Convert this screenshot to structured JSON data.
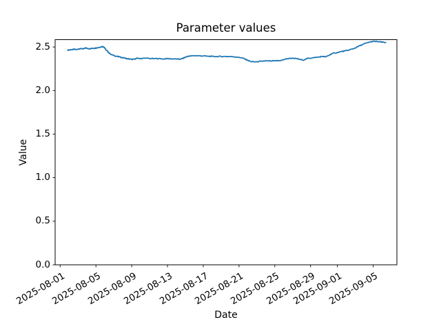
{
  "figure": {
    "title": "Parameter values",
    "xlabel": "Date",
    "ylabel": "Value"
  },
  "chart_data": {
    "type": "line",
    "title": "Parameter values",
    "xlabel": "Date",
    "ylabel": "Value",
    "grid": false,
    "legend_position": "none",
    "background_color": "#ffffff",
    "axes_color": "#000000",
    "line_color": "#1f77b4",
    "x_epoch_date": "2025-08-01",
    "xlim_days": [
      -0.562,
      37.65
    ],
    "ylim": [
      0,
      2.584
    ],
    "y_ticks": [
      0.0,
      0.5,
      1.0,
      1.5,
      2.0,
      2.5
    ],
    "x_ticks": [
      {
        "label": "2025-08-01",
        "day": 0
      },
      {
        "label": "2025-08-05",
        "day": 4
      },
      {
        "label": "2025-08-09",
        "day": 8
      },
      {
        "label": "2025-08-13",
        "day": 12
      },
      {
        "label": "2025-08-17",
        "day": 16
      },
      {
        "label": "2025-08-21",
        "day": 20
      },
      {
        "label": "2025-08-25",
        "day": 24
      },
      {
        "label": "2025-08-29",
        "day": 28
      },
      {
        "label": "2025-09-01",
        "day": 31
      },
      {
        "label": "2025-09-05",
        "day": 35
      }
    ],
    "series": [
      {
        "name": "Parameter values",
        "points_day_value": [
          [
            0.85,
            2.462
          ],
          [
            1.1,
            2.468
          ],
          [
            1.35,
            2.47
          ],
          [
            1.6,
            2.473
          ],
          [
            1.85,
            2.47
          ],
          [
            2.1,
            2.478
          ],
          [
            2.35,
            2.483
          ],
          [
            2.6,
            2.478
          ],
          [
            2.85,
            2.488
          ],
          [
            3.1,
            2.482
          ],
          [
            3.35,
            2.48
          ],
          [
            3.6,
            2.485
          ],
          [
            3.85,
            2.486
          ],
          [
            4.1,
            2.49
          ],
          [
            4.35,
            2.495
          ],
          [
            4.6,
            2.503
          ],
          [
            4.8,
            2.505
          ],
          [
            4.95,
            2.495
          ],
          [
            5.1,
            2.47
          ],
          [
            5.3,
            2.45
          ],
          [
            5.5,
            2.428
          ],
          [
            5.75,
            2.412
          ],
          [
            6.0,
            2.402
          ],
          [
            6.3,
            2.393
          ],
          [
            6.6,
            2.386
          ],
          [
            6.9,
            2.38
          ],
          [
            7.2,
            2.372
          ],
          [
            7.5,
            2.366
          ],
          [
            7.8,
            2.36
          ],
          [
            8.1,
            2.357
          ],
          [
            8.35,
            2.362
          ],
          [
            8.6,
            2.372
          ],
          [
            8.85,
            2.368
          ],
          [
            9.2,
            2.369
          ],
          [
            9.6,
            2.371
          ],
          [
            10.0,
            2.368
          ],
          [
            10.5,
            2.367
          ],
          [
            11.0,
            2.366
          ],
          [
            11.5,
            2.363
          ],
          [
            12.0,
            2.366
          ],
          [
            12.5,
            2.364
          ],
          [
            13.0,
            2.362
          ],
          [
            13.35,
            2.359
          ],
          [
            13.7,
            2.367
          ],
          [
            14.0,
            2.383
          ],
          [
            14.3,
            2.394
          ],
          [
            14.7,
            2.398
          ],
          [
            15.1,
            2.401
          ],
          [
            15.5,
            2.399
          ],
          [
            16.0,
            2.397
          ],
          [
            16.5,
            2.394
          ],
          [
            17.0,
            2.392
          ],
          [
            17.5,
            2.391
          ],
          [
            18.0,
            2.391
          ],
          [
            18.5,
            2.391
          ],
          [
            19.0,
            2.39
          ],
          [
            19.5,
            2.387
          ],
          [
            19.9,
            2.383
          ],
          [
            20.3,
            2.376
          ],
          [
            20.7,
            2.359
          ],
          [
            21.0,
            2.345
          ],
          [
            21.3,
            2.334
          ],
          [
            21.65,
            2.329
          ],
          [
            22.0,
            2.331
          ],
          [
            22.4,
            2.335
          ],
          [
            22.8,
            2.338
          ],
          [
            23.2,
            2.34
          ],
          [
            23.6,
            2.339
          ],
          [
            24.0,
            2.341
          ],
          [
            24.4,
            2.343
          ],
          [
            24.8,
            2.348
          ],
          [
            25.2,
            2.361
          ],
          [
            25.6,
            2.368
          ],
          [
            26.0,
            2.371
          ],
          [
            26.4,
            2.366
          ],
          [
            26.8,
            2.359
          ],
          [
            27.15,
            2.348
          ],
          [
            27.45,
            2.362
          ],
          [
            27.8,
            2.371
          ],
          [
            28.2,
            2.375
          ],
          [
            28.6,
            2.379
          ],
          [
            29.0,
            2.386
          ],
          [
            29.35,
            2.391
          ],
          [
            29.7,
            2.387
          ],
          [
            30.0,
            2.401
          ],
          [
            30.35,
            2.422
          ],
          [
            30.7,
            2.431
          ],
          [
            31.1,
            2.438
          ],
          [
            31.5,
            2.448
          ],
          [
            31.9,
            2.456
          ],
          [
            32.3,
            2.466
          ],
          [
            32.7,
            2.477
          ],
          [
            33.1,
            2.494
          ],
          [
            33.5,
            2.514
          ],
          [
            33.9,
            2.532
          ],
          [
            34.3,
            2.548
          ],
          [
            34.7,
            2.559
          ],
          [
            35.1,
            2.565
          ],
          [
            35.45,
            2.562
          ],
          [
            35.8,
            2.557
          ],
          [
            36.1,
            2.555
          ],
          [
            36.4,
            2.551
          ]
        ]
      }
    ]
  }
}
